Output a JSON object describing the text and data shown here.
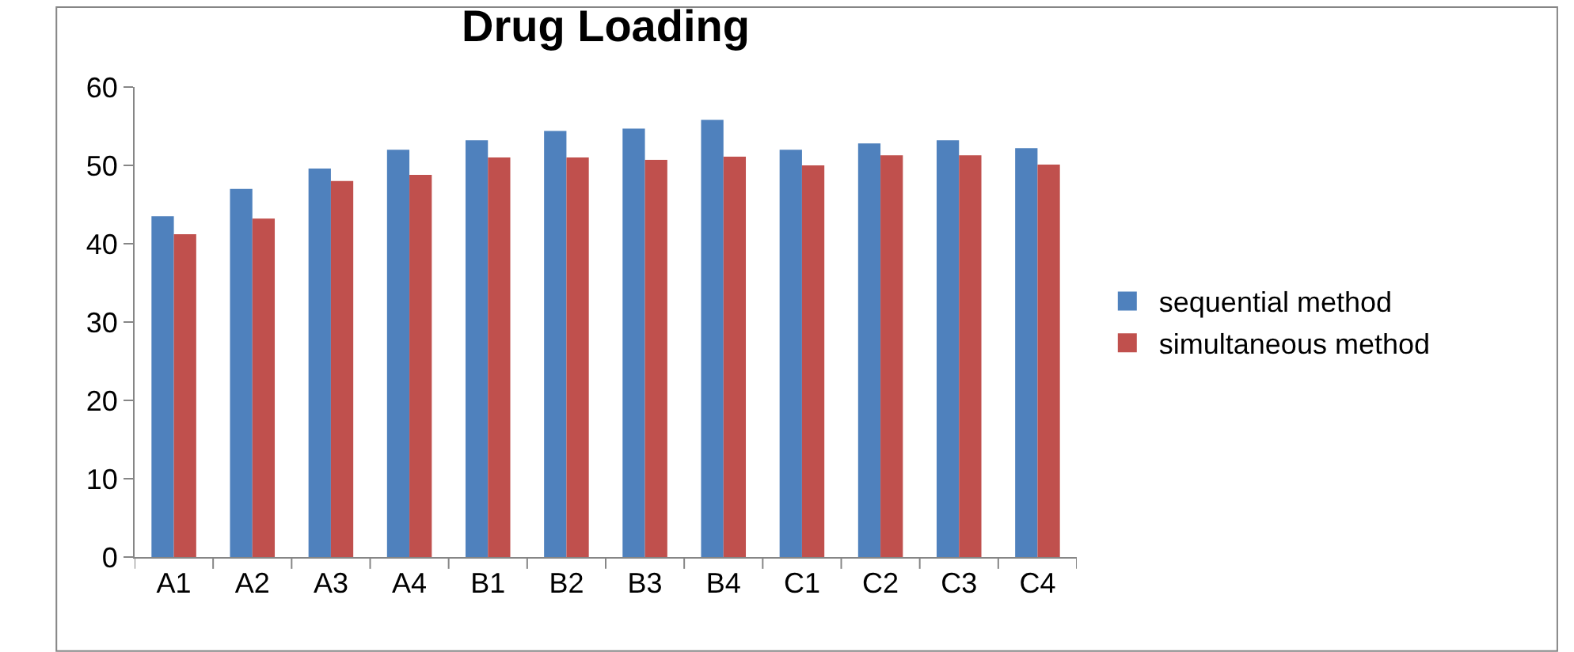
{
  "chart_data": {
    "type": "bar",
    "title": "Drug Loading",
    "categories": [
      "A1",
      "A2",
      "A3",
      "A4",
      "B1",
      "B2",
      "B3",
      "B4",
      "C1",
      "C2",
      "C3",
      "C4"
    ],
    "series": [
      {
        "name": "sequential method",
        "color": "#4f81bd",
        "values": [
          43.5,
          47.0,
          49.6,
          52.0,
          53.2,
          54.4,
          54.7,
          55.8,
          52.0,
          52.8,
          53.2,
          52.2
        ]
      },
      {
        "name": "simultaneous method",
        "color": "#c0504d",
        "values": [
          41.2,
          43.2,
          48.0,
          48.8,
          51.0,
          51.0,
          50.7,
          51.1,
          50.0,
          51.3,
          51.3,
          50.1
        ]
      }
    ],
    "ylim": [
      0,
      60
    ],
    "yticks": [
      0,
      10,
      20,
      30,
      40,
      50,
      60
    ],
    "legend": "right"
  }
}
